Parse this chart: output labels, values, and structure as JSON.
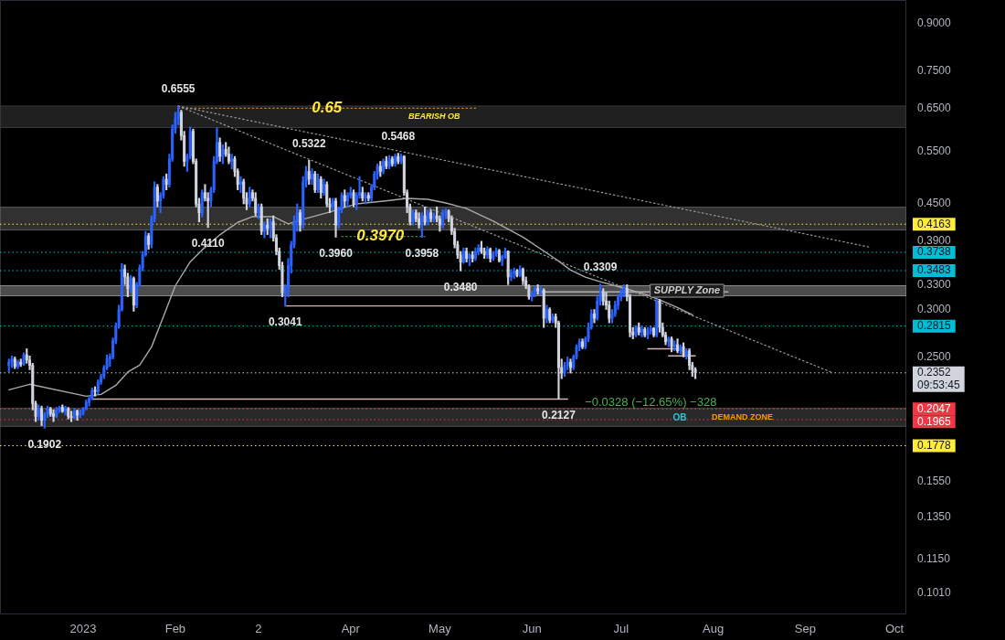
{
  "chart_data": {
    "type": "candlestick",
    "log": true,
    "xlim": [
      "2022-12-04",
      "2023-10-05"
    ],
    "ylim": [
      0.093,
      0.985
    ],
    "xticks": [
      {
        "value": "2023-01-01",
        "label": "2023"
      },
      {
        "value": "2023-02-01",
        "label": "Feb"
      },
      {
        "value": "2023-03-01",
        "label": "2"
      },
      {
        "value": "2023-04-01",
        "label": "Apr"
      },
      {
        "value": "2023-05-01",
        "label": "May"
      },
      {
        "value": "2023-06-01",
        "label": "Jun"
      },
      {
        "value": "2023-07-01",
        "label": "Jul"
      },
      {
        "value": "2023-08-01",
        "label": "Aug"
      },
      {
        "value": "2023-09-01",
        "label": "Sep"
      },
      {
        "value": "2023-10-01",
        "label": "Oct"
      }
    ],
    "yticks": [
      {
        "value": 0.101,
        "label": "0.1010"
      },
      {
        "value": 0.115,
        "label": "0.1150"
      },
      {
        "value": 0.135,
        "label": "0.1350"
      },
      {
        "value": 0.155,
        "label": "0.1550"
      },
      {
        "value": 0.25,
        "label": "0.2500"
      },
      {
        "value": 0.3,
        "label": "0.3000"
      },
      {
        "value": 0.33,
        "label": "0.3300"
      },
      {
        "value": 0.39,
        "label": "0.3900"
      },
      {
        "value": 0.45,
        "label": "0.4500"
      },
      {
        "value": 0.55,
        "label": "0.5500"
      },
      {
        "value": 0.65,
        "label": "0.6500"
      },
      {
        "value": 0.75,
        "label": "0.7500"
      },
      {
        "value": 0.9,
        "label": "0.9000"
      }
    ],
    "x": [
      "2022-12-07",
      "2022-12-08",
      "2022-12-09",
      "2022-12-10",
      "2022-12-11",
      "2022-12-12",
      "2022-12-13",
      "2022-12-14",
      "2022-12-15",
      "2022-12-16",
      "2022-12-17",
      "2022-12-18",
      "2022-12-19",
      "2022-12-20",
      "2022-12-21",
      "2022-12-22",
      "2022-12-23",
      "2022-12-24",
      "2022-12-25",
      "2022-12-26",
      "2022-12-27",
      "2022-12-28",
      "2022-12-29",
      "2022-12-30",
      "2022-12-31",
      "2023-01-01",
      "2023-01-02",
      "2023-01-03",
      "2023-01-04",
      "2023-01-05",
      "2023-01-06",
      "2023-01-07",
      "2023-01-08",
      "2023-01-09",
      "2023-01-10",
      "2023-01-11",
      "2023-01-12",
      "2023-01-13",
      "2023-01-14",
      "2023-01-15",
      "2023-01-16",
      "2023-01-17",
      "2023-01-18",
      "2023-01-19",
      "2023-01-20",
      "2023-01-21",
      "2023-01-22",
      "2023-01-23",
      "2023-01-24",
      "2023-01-25",
      "2023-01-26",
      "2023-01-27",
      "2023-01-28",
      "2023-01-29",
      "2023-01-30",
      "2023-01-31",
      "2023-02-01",
      "2023-02-02",
      "2023-02-03",
      "2023-02-04",
      "2023-02-05",
      "2023-02-06",
      "2023-02-07",
      "2023-02-08",
      "2023-02-09",
      "2023-02-10",
      "2023-02-11",
      "2023-02-12",
      "2023-02-13",
      "2023-02-14",
      "2023-02-15",
      "2023-02-16",
      "2023-02-17",
      "2023-02-18",
      "2023-02-19",
      "2023-02-20",
      "2023-02-21",
      "2023-02-22",
      "2023-02-23",
      "2023-02-24",
      "2023-02-25",
      "2023-02-26",
      "2023-02-27",
      "2023-02-28",
      "2023-03-01",
      "2023-03-02",
      "2023-03-03",
      "2023-03-04",
      "2023-03-05",
      "2023-03-06",
      "2023-03-07",
      "2023-03-08",
      "2023-03-09",
      "2023-03-10",
      "2023-03-11",
      "2023-03-12",
      "2023-03-13",
      "2023-03-14",
      "2023-03-15",
      "2023-03-16",
      "2023-03-17",
      "2023-03-18",
      "2023-03-19",
      "2023-03-20",
      "2023-03-21",
      "2023-03-22",
      "2023-03-23",
      "2023-03-24",
      "2023-03-25",
      "2023-03-26",
      "2023-03-27",
      "2023-03-28",
      "2023-03-29",
      "2023-03-30",
      "2023-03-31",
      "2023-04-01",
      "2023-04-02",
      "2023-04-03",
      "2023-04-04",
      "2023-04-05",
      "2023-04-06",
      "2023-04-07",
      "2023-04-08",
      "2023-04-09",
      "2023-04-10",
      "2023-04-11",
      "2023-04-12",
      "2023-04-13",
      "2023-04-14",
      "2023-04-15",
      "2023-04-16",
      "2023-04-17",
      "2023-04-18",
      "2023-04-19",
      "2023-04-20",
      "2023-04-21",
      "2023-04-22",
      "2023-04-23",
      "2023-04-24",
      "2023-04-25",
      "2023-04-26",
      "2023-04-27",
      "2023-04-28",
      "2023-04-29",
      "2023-04-30",
      "2023-05-01",
      "2023-05-02",
      "2023-05-03",
      "2023-05-04",
      "2023-05-05",
      "2023-05-06",
      "2023-05-07",
      "2023-05-08",
      "2023-05-09",
      "2023-05-10",
      "2023-05-11",
      "2023-05-12",
      "2023-05-13",
      "2023-05-14",
      "2023-05-15",
      "2023-05-16",
      "2023-05-17",
      "2023-05-18",
      "2023-05-19",
      "2023-05-20",
      "2023-05-21",
      "2023-05-22",
      "2023-05-23",
      "2023-05-24",
      "2023-05-25",
      "2023-05-26",
      "2023-05-27",
      "2023-05-28",
      "2023-05-29",
      "2023-05-30",
      "2023-05-31",
      "2023-06-01",
      "2023-06-02",
      "2023-06-03",
      "2023-06-04",
      "2023-06-05",
      "2023-06-06",
      "2023-06-07",
      "2023-06-08",
      "2023-06-09",
      "2023-06-10",
      "2023-06-11",
      "2023-06-12",
      "2023-06-13",
      "2023-06-14",
      "2023-06-15",
      "2023-06-16",
      "2023-06-17",
      "2023-06-18",
      "2023-06-19",
      "2023-06-20",
      "2023-06-21",
      "2023-06-22",
      "2023-06-23",
      "2023-06-24",
      "2023-06-25",
      "2023-06-26",
      "2023-06-27",
      "2023-06-28",
      "2023-06-29",
      "2023-06-30",
      "2023-07-01",
      "2023-07-02",
      "2023-07-03",
      "2023-07-04",
      "2023-07-05",
      "2023-07-06",
      "2023-07-07",
      "2023-07-08",
      "2023-07-09",
      "2023-07-10",
      "2023-07-11",
      "2023-07-12",
      "2023-07-13",
      "2023-07-14",
      "2023-07-15",
      "2023-07-16",
      "2023-07-17",
      "2023-07-18",
      "2023-07-19",
      "2023-07-20",
      "2023-07-21",
      "2023-07-22",
      "2023-07-23",
      "2023-07-24",
      "2023-07-25",
      "2023-07-26"
    ],
    "ohlc": [
      [
        0.242,
        0.248,
        0.236,
        0.245
      ],
      [
        0.245,
        0.251,
        0.24,
        0.248
      ],
      [
        0.248,
        0.25,
        0.239,
        0.241
      ],
      [
        0.241,
        0.247,
        0.239,
        0.245
      ],
      [
        0.245,
        0.248,
        0.241,
        0.243
      ],
      [
        0.243,
        0.254,
        0.242,
        0.252
      ],
      [
        0.252,
        0.258,
        0.244,
        0.247
      ],
      [
        0.247,
        0.251,
        0.238,
        0.242
      ],
      [
        0.242,
        0.244,
        0.204,
        0.209
      ],
      [
        0.209,
        0.211,
        0.195,
        0.199
      ],
      [
        0.199,
        0.208,
        0.196,
        0.205
      ],
      [
        0.205,
        0.207,
        0.192,
        0.196
      ],
      [
        0.196,
        0.202,
        0.1902,
        0.2
      ],
      [
        0.2,
        0.207,
        0.198,
        0.205
      ],
      [
        0.205,
        0.206,
        0.199,
        0.201
      ],
      [
        0.201,
        0.204,
        0.195,
        0.199
      ],
      [
        0.199,
        0.206,
        0.198,
        0.204
      ],
      [
        0.204,
        0.207,
        0.202,
        0.206
      ],
      [
        0.206,
        0.208,
        0.202,
        0.203
      ],
      [
        0.203,
        0.207,
        0.2,
        0.205
      ],
      [
        0.205,
        0.206,
        0.197,
        0.199
      ],
      [
        0.199,
        0.203,
        0.195,
        0.198
      ],
      [
        0.198,
        0.205,
        0.197,
        0.203
      ],
      [
        0.203,
        0.204,
        0.196,
        0.2
      ],
      [
        0.2,
        0.204,
        0.198,
        0.202
      ],
      [
        0.202,
        0.206,
        0.2,
        0.205
      ],
      [
        0.205,
        0.212,
        0.204,
        0.21
      ],
      [
        0.21,
        0.215,
        0.207,
        0.213
      ],
      [
        0.213,
        0.222,
        0.212,
        0.22
      ],
      [
        0.22,
        0.223,
        0.215,
        0.219
      ],
      [
        0.219,
        0.229,
        0.217,
        0.227
      ],
      [
        0.227,
        0.234,
        0.225,
        0.232
      ],
      [
        0.232,
        0.242,
        0.23,
        0.24
      ],
      [
        0.24,
        0.252,
        0.238,
        0.248
      ],
      [
        0.248,
        0.253,
        0.241,
        0.25
      ],
      [
        0.25,
        0.269,
        0.248,
        0.266
      ],
      [
        0.266,
        0.285,
        0.263,
        0.282
      ],
      [
        0.282,
        0.305,
        0.279,
        0.3
      ],
      [
        0.3,
        0.358,
        0.298,
        0.35
      ],
      [
        0.35,
        0.356,
        0.33,
        0.34
      ],
      [
        0.34,
        0.345,
        0.315,
        0.325
      ],
      [
        0.325,
        0.342,
        0.32,
        0.338
      ],
      [
        0.338,
        0.34,
        0.298,
        0.305
      ],
      [
        0.305,
        0.333,
        0.302,
        0.33
      ],
      [
        0.33,
        0.356,
        0.328,
        0.352
      ],
      [
        0.352,
        0.375,
        0.348,
        0.37
      ],
      [
        0.37,
        0.405,
        0.368,
        0.398
      ],
      [
        0.398,
        0.402,
        0.378,
        0.385
      ],
      [
        0.385,
        0.43,
        0.38,
        0.425
      ],
      [
        0.425,
        0.49,
        0.42,
        0.48
      ],
      [
        0.48,
        0.485,
        0.445,
        0.455
      ],
      [
        0.455,
        0.47,
        0.435,
        0.465
      ],
      [
        0.465,
        0.5,
        0.46,
        0.495
      ],
      [
        0.495,
        0.505,
        0.475,
        0.485
      ],
      [
        0.485,
        0.545,
        0.48,
        0.535
      ],
      [
        0.535,
        0.61,
        0.53,
        0.6
      ],
      [
        0.6,
        0.64,
        0.59,
        0.625
      ],
      [
        0.625,
        0.6555,
        0.61,
        0.64
      ],
      [
        0.64,
        0.645,
        0.575,
        0.585
      ],
      [
        0.585,
        0.595,
        0.52,
        0.53
      ],
      [
        0.53,
        0.545,
        0.51,
        0.54
      ],
      [
        0.54,
        0.605,
        0.535,
        0.595
      ],
      [
        0.595,
        0.6,
        0.525,
        0.53
      ],
      [
        0.53,
        0.535,
        0.445,
        0.45
      ],
      [
        0.45,
        0.46,
        0.42,
        0.435
      ],
      [
        0.435,
        0.475,
        0.428,
        0.47
      ],
      [
        0.47,
        0.485,
        0.455,
        0.46
      ],
      [
        0.46,
        0.47,
        0.411,
        0.455
      ],
      [
        0.455,
        0.48,
        0.445,
        0.475
      ],
      [
        0.475,
        0.54,
        0.47,
        0.53
      ],
      [
        0.53,
        0.603,
        0.525,
        0.57
      ],
      [
        0.57,
        0.58,
        0.53,
        0.54
      ],
      [
        0.54,
        0.565,
        0.525,
        0.555
      ],
      [
        0.555,
        0.57,
        0.54,
        0.545
      ],
      [
        0.545,
        0.56,
        0.525,
        0.53
      ],
      [
        0.53,
        0.545,
        0.515,
        0.535
      ],
      [
        0.535,
        0.54,
        0.5,
        0.51
      ],
      [
        0.51,
        0.515,
        0.475,
        0.485
      ],
      [
        0.485,
        0.5,
        0.47,
        0.49
      ],
      [
        0.49,
        0.495,
        0.45,
        0.46
      ],
      [
        0.46,
        0.47,
        0.44,
        0.45
      ],
      [
        0.45,
        0.48,
        0.445,
        0.47
      ],
      [
        0.47,
        0.475,
        0.455,
        0.46
      ],
      [
        0.46,
        0.47,
        0.43,
        0.435
      ],
      [
        0.435,
        0.45,
        0.425,
        0.445
      ],
      [
        0.445,
        0.45,
        0.4,
        0.405
      ],
      [
        0.405,
        0.42,
        0.395,
        0.415
      ],
      [
        0.415,
        0.425,
        0.4,
        0.41
      ],
      [
        0.41,
        0.425,
        0.395,
        0.42
      ],
      [
        0.42,
        0.43,
        0.39,
        0.395
      ],
      [
        0.395,
        0.4,
        0.37,
        0.375
      ],
      [
        0.375,
        0.38,
        0.35,
        0.355
      ],
      [
        0.355,
        0.36,
        0.315,
        0.32
      ],
      [
        0.32,
        0.33,
        0.3041,
        0.325
      ],
      [
        0.325,
        0.365,
        0.315,
        0.355
      ],
      [
        0.355,
        0.39,
        0.345,
        0.385
      ],
      [
        0.385,
        0.43,
        0.38,
        0.42
      ],
      [
        0.42,
        0.45,
        0.405,
        0.435
      ],
      [
        0.435,
        0.44,
        0.405,
        0.415
      ],
      [
        0.415,
        0.5,
        0.41,
        0.49
      ],
      [
        0.49,
        0.52,
        0.48,
        0.51
      ],
      [
        0.51,
        0.5322,
        0.485,
        0.495
      ],
      [
        0.495,
        0.515,
        0.485,
        0.505
      ],
      [
        0.505,
        0.51,
        0.47,
        0.475
      ],
      [
        0.475,
        0.505,
        0.47,
        0.495
      ],
      [
        0.495,
        0.5,
        0.46,
        0.47
      ],
      [
        0.47,
        0.495,
        0.465,
        0.485
      ],
      [
        0.485,
        0.49,
        0.445,
        0.45
      ],
      [
        0.45,
        0.46,
        0.435,
        0.445
      ],
      [
        0.445,
        0.46,
        0.44,
        0.455
      ],
      [
        0.455,
        0.46,
        0.396,
        0.415
      ],
      [
        0.415,
        0.445,
        0.41,
        0.44
      ],
      [
        0.44,
        0.47,
        0.435,
        0.465
      ],
      [
        0.465,
        0.475,
        0.445,
        0.455
      ],
      [
        0.455,
        0.47,
        0.445,
        0.465
      ],
      [
        0.465,
        0.48,
        0.46,
        0.47
      ],
      [
        0.47,
        0.475,
        0.445,
        0.45
      ],
      [
        0.45,
        0.47,
        0.44,
        0.465
      ],
      [
        0.465,
        0.5,
        0.46,
        0.47
      ],
      [
        0.47,
        0.48,
        0.455,
        0.46
      ],
      [
        0.46,
        0.47,
        0.45,
        0.465
      ],
      [
        0.465,
        0.47,
        0.455,
        0.46
      ],
      [
        0.46,
        0.485,
        0.455,
        0.48
      ],
      [
        0.48,
        0.51,
        0.475,
        0.505
      ],
      [
        0.505,
        0.525,
        0.495,
        0.52
      ],
      [
        0.52,
        0.53,
        0.5,
        0.51
      ],
      [
        0.51,
        0.535,
        0.505,
        0.53
      ],
      [
        0.53,
        0.54,
        0.515,
        0.52
      ],
      [
        0.52,
        0.542,
        0.515,
        0.535
      ],
      [
        0.535,
        0.54,
        0.52,
        0.525
      ],
      [
        0.525,
        0.545,
        0.52,
        0.54
      ],
      [
        0.54,
        0.5468,
        0.525,
        0.53
      ],
      [
        0.53,
        0.545,
        0.525,
        0.54
      ],
      [
        0.54,
        0.542,
        0.465,
        0.47
      ],
      [
        0.47,
        0.475,
        0.435,
        0.445
      ],
      [
        0.445,
        0.45,
        0.415,
        0.42
      ],
      [
        0.42,
        0.44,
        0.415,
        0.435
      ],
      [
        0.435,
        0.44,
        0.42,
        0.425
      ],
      [
        0.425,
        0.435,
        0.41,
        0.415
      ],
      [
        0.415,
        0.435,
        0.3958,
        0.43
      ],
      [
        0.43,
        0.445,
        0.415,
        0.42
      ],
      [
        0.42,
        0.44,
        0.415,
        0.435
      ],
      [
        0.435,
        0.44,
        0.42,
        0.425
      ],
      [
        0.425,
        0.435,
        0.42,
        0.43
      ],
      [
        0.43,
        0.445,
        0.42,
        0.425
      ],
      [
        0.425,
        0.43,
        0.405,
        0.415
      ],
      [
        0.415,
        0.44,
        0.41,
        0.435
      ],
      [
        0.435,
        0.442,
        0.425,
        0.438
      ],
      [
        0.438,
        0.44,
        0.42,
        0.425
      ],
      [
        0.425,
        0.43,
        0.4,
        0.405
      ],
      [
        0.405,
        0.41,
        0.38,
        0.385
      ],
      [
        0.385,
        0.39,
        0.365,
        0.37
      ],
      [
        0.37,
        0.375,
        0.348,
        0.36
      ],
      [
        0.36,
        0.38,
        0.358,
        0.375
      ],
      [
        0.375,
        0.38,
        0.36,
        0.365
      ],
      [
        0.365,
        0.372,
        0.355,
        0.37
      ],
      [
        0.37,
        0.375,
        0.36,
        0.365
      ],
      [
        0.365,
        0.38,
        0.362,
        0.375
      ],
      [
        0.375,
        0.385,
        0.37,
        0.38
      ],
      [
        0.38,
        0.39,
        0.372,
        0.375
      ],
      [
        0.375,
        0.38,
        0.365,
        0.37
      ],
      [
        0.37,
        0.382,
        0.365,
        0.378
      ],
      [
        0.378,
        0.38,
        0.36,
        0.365
      ],
      [
        0.365,
        0.375,
        0.362,
        0.372
      ],
      [
        0.372,
        0.38,
        0.368,
        0.376
      ],
      [
        0.376,
        0.378,
        0.36,
        0.362
      ],
      [
        0.362,
        0.37,
        0.355,
        0.368
      ],
      [
        0.368,
        0.38,
        0.365,
        0.375
      ],
      [
        0.375,
        0.376,
        0.33,
        0.34
      ],
      [
        0.34,
        0.35,
        0.335,
        0.345
      ],
      [
        0.345,
        0.352,
        0.338,
        0.348
      ],
      [
        0.348,
        0.35,
        0.34,
        0.342
      ],
      [
        0.342,
        0.355,
        0.34,
        0.35
      ],
      [
        0.35,
        0.352,
        0.33,
        0.335
      ],
      [
        0.335,
        0.34,
        0.325,
        0.328
      ],
      [
        0.328,
        0.33,
        0.312,
        0.315
      ],
      [
        0.315,
        0.322,
        0.31,
        0.32
      ],
      [
        0.32,
        0.328,
        0.315,
        0.325
      ],
      [
        0.325,
        0.33,
        0.318,
        0.322
      ],
      [
        0.322,
        0.328,
        0.317,
        0.323
      ],
      [
        0.323,
        0.325,
        0.28,
        0.29
      ],
      [
        0.29,
        0.305,
        0.285,
        0.3
      ],
      [
        0.3,
        0.302,
        0.285,
        0.288
      ],
      [
        0.288,
        0.295,
        0.285,
        0.292
      ],
      [
        0.292,
        0.295,
        0.28,
        0.285
      ],
      [
        0.285,
        0.287,
        0.2127,
        0.24
      ],
      [
        0.24,
        0.248,
        0.23,
        0.235
      ],
      [
        0.235,
        0.245,
        0.232,
        0.242
      ],
      [
        0.242,
        0.25,
        0.238,
        0.245
      ],
      [
        0.245,
        0.248,
        0.235,
        0.24
      ],
      [
        0.24,
        0.252,
        0.238,
        0.25
      ],
      [
        0.25,
        0.262,
        0.248,
        0.26
      ],
      [
        0.26,
        0.268,
        0.256,
        0.265
      ],
      [
        0.265,
        0.268,
        0.258,
        0.26
      ],
      [
        0.26,
        0.27,
        0.258,
        0.268
      ],
      [
        0.268,
        0.285,
        0.265,
        0.28
      ],
      [
        0.28,
        0.3,
        0.278,
        0.295
      ],
      [
        0.295,
        0.3,
        0.285,
        0.29
      ],
      [
        0.29,
        0.315,
        0.288,
        0.31
      ],
      [
        0.31,
        0.3309,
        0.305,
        0.32
      ],
      [
        0.32,
        0.325,
        0.305,
        0.31
      ],
      [
        0.31,
        0.32,
        0.3,
        0.305
      ],
      [
        0.305,
        0.31,
        0.285,
        0.29
      ],
      [
        0.29,
        0.3,
        0.285,
        0.295
      ],
      [
        0.295,
        0.31,
        0.292,
        0.305
      ],
      [
        0.305,
        0.318,
        0.3,
        0.315
      ],
      [
        0.315,
        0.325,
        0.31,
        0.32
      ],
      [
        0.32,
        0.33,
        0.315,
        0.325
      ],
      [
        0.325,
        0.33,
        0.31,
        0.315
      ],
      [
        0.315,
        0.318,
        0.27,
        0.275
      ],
      [
        0.275,
        0.28,
        0.268,
        0.272
      ],
      [
        0.272,
        0.282,
        0.27,
        0.28
      ],
      [
        0.28,
        0.285,
        0.272,
        0.275
      ],
      [
        0.275,
        0.282,
        0.27,
        0.278
      ],
      [
        0.278,
        0.28,
        0.27,
        0.272
      ],
      [
        0.272,
        0.28,
        0.268,
        0.276
      ],
      [
        0.276,
        0.282,
        0.273,
        0.279
      ],
      [
        0.279,
        0.28,
        0.27,
        0.272
      ],
      [
        0.272,
        0.312,
        0.27,
        0.31
      ],
      [
        0.31,
        0.312,
        0.275,
        0.28
      ],
      [
        0.28,
        0.285,
        0.27,
        0.272
      ],
      [
        0.272,
        0.275,
        0.262,
        0.265
      ],
      [
        0.265,
        0.27,
        0.26,
        0.268
      ],
      [
        0.268,
        0.27,
        0.255,
        0.26
      ],
      [
        0.26,
        0.266,
        0.256,
        0.262
      ],
      [
        0.262,
        0.268,
        0.254,
        0.256
      ],
      [
        0.256,
        0.262,
        0.253,
        0.26
      ],
      [
        0.26,
        0.264,
        0.25,
        0.252
      ],
      [
        0.252,
        0.258,
        0.248,
        0.256
      ],
      [
        0.256,
        0.258,
        0.238,
        0.242
      ],
      [
        0.242,
        0.245,
        0.232,
        0.238
      ],
      [
        0.238,
        0.24,
        0.23,
        0.2352
      ]
    ],
    "colors": [
      "#2962ff",
      "#2962ff",
      "#d1d4dc",
      "#2962ff",
      "#d1d4dc",
      "#2962ff",
      "#d1d4dc",
      "#d1d4dc",
      "#d1d4dc",
      "#d1d4dc",
      "#2962ff",
      "#d1d4dc",
      "#2962ff",
      "#2962ff",
      "#d1d4dc",
      "#d1d4dc",
      "#2962ff",
      "#2962ff",
      "#d1d4dc",
      "#2962ff",
      "#d1d4dc",
      "#d1d4dc",
      "#2962ff",
      "#d1d4dc",
      "#2962ff",
      "#2962ff",
      "#2962ff",
      "#2962ff",
      "#2962ff",
      "#d1d4dc",
      "#2962ff",
      "#2962ff",
      "#2962ff",
      "#2962ff",
      "#2962ff",
      "#2962ff",
      "#2962ff",
      "#2962ff",
      "#2962ff",
      "#d1d4dc",
      "#d1d4dc",
      "#2962ff",
      "#d1d4dc",
      "#2962ff",
      "#2962ff",
      "#2962ff",
      "#2962ff",
      "#d1d4dc",
      "#2962ff",
      "#2962ff",
      "#d1d4dc",
      "#2962ff",
      "#2962ff",
      "#d1d4dc",
      "#2962ff",
      "#2962ff",
      "#2962ff",
      "#2962ff",
      "#d1d4dc",
      "#d1d4dc",
      "#2962ff",
      "#2962ff",
      "#d1d4dc",
      "#d1d4dc",
      "#d1d4dc",
      "#2962ff",
      "#d1d4dc",
      "#d1d4dc",
      "#2962ff",
      "#2962ff",
      "#2962ff",
      "#d1d4dc",
      "#2962ff",
      "#d1d4dc",
      "#d1d4dc",
      "#2962ff",
      "#d1d4dc",
      "#d1d4dc",
      "#2962ff",
      "#d1d4dc",
      "#d1d4dc",
      "#2962ff",
      "#d1d4dc",
      "#d1d4dc",
      "#2962ff",
      "#d1d4dc",
      "#2962ff",
      "#d1d4dc",
      "#2962ff",
      "#d1d4dc",
      "#d1d4dc",
      "#d1d4dc",
      "#d1d4dc",
      "#2962ff",
      "#2962ff",
      "#2962ff",
      "#2962ff",
      "#2962ff",
      "#d1d4dc",
      "#2962ff",
      "#2962ff",
      "#d1d4dc",
      "#2962ff",
      "#d1d4dc",
      "#2962ff",
      "#d1d4dc",
      "#2962ff",
      "#d1d4dc",
      "#d1d4dc",
      "#2962ff",
      "#d1d4dc",
      "#2962ff",
      "#2962ff",
      "#d1d4dc",
      "#2962ff",
      "#2962ff",
      "#d1d4dc",
      "#2962ff",
      "#2962ff",
      "#d1d4dc",
      "#2962ff",
      "#d1d4dc",
      "#2962ff",
      "#2962ff",
      "#2962ff",
      "#d1d4dc",
      "#2962ff",
      "#d1d4dc",
      "#2962ff",
      "#d1d4dc",
      "#2962ff",
      "#d1d4dc",
      "#2962ff",
      "#d1d4dc",
      "#d1d4dc",
      "#d1d4dc",
      "#2962ff",
      "#d1d4dc",
      "#d1d4dc",
      "#2962ff",
      "#d1d4dc",
      "#2962ff",
      "#d1d4dc",
      "#2962ff",
      "#d1d4dc",
      "#d1d4dc",
      "#2962ff",
      "#2962ff",
      "#d1d4dc",
      "#d1d4dc",
      "#d1d4dc",
      "#d1d4dc",
      "#d1d4dc",
      "#2962ff",
      "#d1d4dc",
      "#2962ff",
      "#d1d4dc",
      "#2962ff",
      "#2962ff",
      "#d1d4dc",
      "#d1d4dc",
      "#2962ff",
      "#d1d4dc",
      "#2962ff",
      "#2962ff",
      "#d1d4dc",
      "#2962ff",
      "#2962ff",
      "#d1d4dc",
      "#2962ff",
      "#2962ff",
      "#d1d4dc",
      "#2962ff",
      "#d1d4dc",
      "#d1d4dc",
      "#d1d4dc",
      "#2962ff",
      "#2962ff",
      "#d1d4dc",
      "#2962ff",
      "#d1d4dc",
      "#2962ff",
      "#d1d4dc",
      "#2962ff",
      "#d1d4dc",
      "#d1d4dc",
      "#d1d4dc",
      "#2962ff",
      "#2962ff",
      "#d1d4dc",
      "#2962ff",
      "#2962ff",
      "#2962ff",
      "#d1d4dc",
      "#2962ff",
      "#2962ff",
      "#2962ff",
      "#d1d4dc",
      "#2962ff",
      "#2962ff",
      "#d1d4dc",
      "#d1d4dc",
      "#d1d4dc",
      "#2962ff",
      "#2962ff",
      "#2962ff",
      "#2962ff",
      "#2962ff",
      "#d1d4dc",
      "#d1d4dc",
      "#d1d4dc",
      "#2962ff",
      "#d1d4dc",
      "#2962ff",
      "#d1d4dc",
      "#2962ff",
      "#2962ff",
      "#d1d4dc",
      "#2962ff",
      "#d1d4dc",
      "#d1d4dc",
      "#d1d4dc",
      "#2962ff",
      "#d1d4dc",
      "#2962ff",
      "#d1d4dc",
      "#2962ff",
      "#d1d4dc",
      "#2962ff",
      "#d1d4dc",
      "#d1d4dc",
      "#d1d4dc"
    ],
    "series": [
      {
        "type": "line",
        "color": "#a8a8a8",
        "line_style": "solid",
        "x": [
          "2022-12-07",
          "2022-12-14",
          "2023-01-02",
          "2023-01-07",
          "2023-01-12",
          "2023-01-16",
          "2023-01-20",
          "2023-01-24",
          "2023-01-28",
          "2023-02-01",
          "2023-02-06",
          "2023-02-10",
          "2023-02-16",
          "2023-02-22",
          "2023-02-27",
          "2023-03-06",
          "2023-03-11",
          "2023-03-16",
          "2023-03-25",
          "2023-04-03",
          "2023-04-12",
          "2023-04-20",
          "2023-04-27",
          "2023-05-03",
          "2023-05-10",
          "2023-05-19",
          "2023-05-29",
          "2023-06-09",
          "2023-06-14",
          "2023-06-19",
          "2023-06-24",
          "2023-06-29",
          "2023-07-04",
          "2023-07-10",
          "2023-07-15",
          "2023-07-20",
          "2023-07-25"
        ],
        "values": [
          0.2203,
          0.2251,
          0.215,
          0.2165,
          0.2242,
          0.2359,
          0.2422,
          0.2599,
          0.2919,
          0.3287,
          0.3602,
          0.3771,
          0.3997,
          0.4192,
          0.4286,
          0.4286,
          0.4168,
          0.4241,
          0.4362,
          0.4502,
          0.4549,
          0.4597,
          0.4581,
          0.4517,
          0.4422,
          0.4212,
          0.3961,
          0.3643,
          0.3491,
          0.3397,
          0.3338,
          0.3287,
          0.3235,
          0.317,
          0.3097,
          0.3023,
          0.2939
        ]
      },
      {
        "type": "line",
        "color": "#9a9a9a",
        "line_style": "dotted",
        "x": [
          "2023-02-02",
          "2023-09-23"
        ],
        "values": [
          0.6555,
          0.3809
        ]
      },
      {
        "type": "line",
        "color": "#9a9a9a",
        "line_style": "dotted",
        "x": [
          "2023-02-02",
          "2023-09-10"
        ],
        "values": [
          0.6555,
          0.2355
        ]
      },
      {
        "type": "line",
        "color": "#c8772e",
        "line_style": "dotted",
        "x": [
          "2023-02-02",
          "2023-05-14"
        ],
        "values": [
          0.65,
          0.65
        ]
      },
      {
        "type": "line",
        "color": "#4caf50",
        "line_style": "dotted",
        "x": [
          "2023-03-29",
          "2023-04-26"
        ],
        "values": [
          0.397,
          0.397
        ]
      },
      {
        "type": "line",
        "color": "#d4b3b3",
        "line_style": "solid",
        "x": [
          "2023-03-10",
          "2023-06-04"
        ],
        "values": [
          0.3041,
          0.3041
        ]
      },
      {
        "type": "line",
        "color": "#d4b3b3",
        "line_style": "solid",
        "x": [
          "2023-01-04",
          "2023-06-13"
        ],
        "values": [
          0.2127,
          0.2127
        ]
      },
      {
        "type": "line",
        "color": "#b0b0b0",
        "line_style": "solid",
        "x": [
          "2023-06-04",
          "2023-08-06"
        ],
        "values": [
          0.321,
          0.321
        ]
      },
      {
        "type": "line",
        "color": "#d4b3b3",
        "line_style": "solid",
        "x": [
          "2023-07-10",
          "2023-07-20"
        ],
        "values": [
          0.258,
          0.258
        ]
      },
      {
        "type": "line",
        "color": "#d4b3b3",
        "line_style": "solid",
        "x": [
          "2023-07-17",
          "2023-07-26"
        ],
        "values": [
          0.251,
          0.251
        ]
      }
    ],
    "bands": [
      {
        "axis": "y",
        "from": 0.6035,
        "to": 0.6555,
        "color": "#3a3a3a",
        "label": "BEARISH OB"
      },
      {
        "axis": "y",
        "from": 0.4072,
        "to": 0.4444,
        "color": "#5a5a5a"
      },
      {
        "axis": "y",
        "from": 0.3162,
        "to": 0.3287,
        "color": "#8a8a8a",
        "label": "SUPPLY Zone"
      },
      {
        "axis": "y",
        "from": 0.1915,
        "to": 0.2054,
        "color": "#4a4a4a",
        "label": "DEMAND ZONE"
      }
    ],
    "ref_lines": [
      {
        "axis": "y",
        "value": 0.4163,
        "label": "0.4163",
        "color": "#ffeb3b",
        "line_style": "dotted"
      },
      {
        "axis": "y",
        "value": 0.3738,
        "label": "0.3738",
        "color": "#00bcd4",
        "line_style": "dotted"
      },
      {
        "axis": "y",
        "value": 0.3483,
        "label": "0.3483",
        "color": "#00bcd4",
        "line_style": "dotted"
      },
      {
        "axis": "y",
        "value": 0.2815,
        "label": "0.2815",
        "color": "#00bcd4",
        "line_style": "dotted"
      },
      {
        "axis": "y",
        "value": 0.2352,
        "label": "0.2352\n09:53:45",
        "color": "#d1d4dc",
        "line_style": "dotted"
      },
      {
        "axis": "y",
        "value": 0.2047,
        "label": "0.2047",
        "color": "#f23645",
        "line_style": "dotted"
      },
      {
        "axis": "y",
        "value": 0.1965,
        "label": "0.1965",
        "color": "#f23645",
        "line_style": "dotted"
      },
      {
        "axis": "y",
        "value": 0.1778,
        "label": "0.1778",
        "color": "#ffeb3b",
        "line_style": "dotted"
      }
    ],
    "annotations": [
      {
        "text": "0.6555",
        "x": "2023-02-02",
        "y": 0.6555
      },
      {
        "text": "0.65",
        "x": "2023-03-24",
        "y": 0.65
      },
      {
        "text": "0.5322",
        "x": "2023-03-18",
        "y": 0.5322
      },
      {
        "text": "0.5468",
        "x": "2023-04-17",
        "y": 0.5468
      },
      {
        "text": "0.4110",
        "x": "2023-02-12",
        "y": 0.411
      },
      {
        "text": "0.3960",
        "x": "2023-03-27",
        "y": 0.396
      },
      {
        "text": "0.3970",
        "x": "2023-04-11",
        "y": 0.397
      },
      {
        "text": "0.3958",
        "x": "2023-04-25",
        "y": 0.3958
      },
      {
        "text": "0.3480",
        "x": "2023-05-08",
        "y": 0.348
      },
      {
        "text": "0.3041",
        "x": "2023-03-10",
        "y": 0.3041
      },
      {
        "text": "0.3309",
        "x": "2023-06-24",
        "y": 0.3309
      },
      "−0.0328 (−12.65%) −328",
      {
        "text": "0.2127",
        "x": "2023-06-10",
        "y": 0.2127
      },
      "OB",
      {
        "text": "0.1902",
        "x": "2022-12-19",
        "y": 0.1902
      }
    ]
  }
}
